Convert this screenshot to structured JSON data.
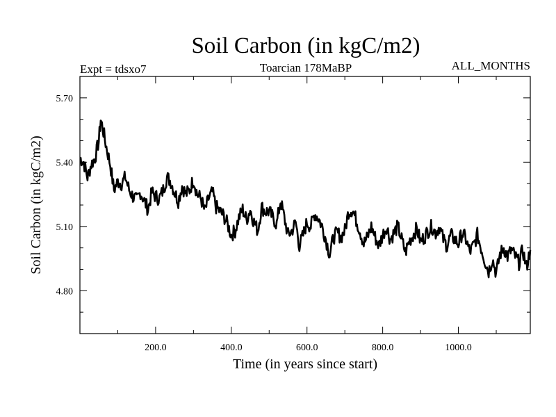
{
  "chart_data": {
    "type": "line",
    "title": "Soil Carbon (in kgC/m2)",
    "subtitle_left": "Expt = tdsxo7",
    "subtitle_center": "Toarcian 178MaBP",
    "subtitle_right": "ALL_MONTHS",
    "xlabel": "Time (in years since start)",
    "ylabel": "Soil Carbon (in kgC/m2)",
    "xlim": [
      0,
      1190
    ],
    "ylim": [
      4.6,
      5.8
    ],
    "xticks": [
      200,
      400,
      600,
      800,
      1000
    ],
    "xtick_labels": [
      "200.0",
      "400.0",
      "600.0",
      "800.0",
      "1000.0"
    ],
    "yticks": [
      4.8,
      5.1,
      5.4,
      5.7
    ],
    "ytick_labels": [
      "4.80",
      "5.10",
      "5.40",
      "5.70"
    ],
    "series": [
      {
        "name": "Soil Carbon",
        "x": [
          0,
          10,
          20,
          30,
          40,
          50,
          55,
          60,
          70,
          80,
          90,
          100,
          110,
          120,
          130,
          140,
          150,
          160,
          170,
          180,
          190,
          200,
          210,
          220,
          230,
          240,
          250,
          260,
          270,
          280,
          290,
          300,
          310,
          320,
          330,
          340,
          350,
          360,
          370,
          380,
          390,
          400,
          410,
          420,
          430,
          440,
          450,
          460,
          470,
          480,
          490,
          500,
          510,
          520,
          530,
          540,
          550,
          560,
          570,
          580,
          590,
          600,
          610,
          620,
          630,
          640,
          650,
          660,
          670,
          680,
          690,
          700,
          710,
          720,
          730,
          740,
          750,
          760,
          770,
          780,
          790,
          800,
          810,
          820,
          830,
          840,
          850,
          860,
          870,
          880,
          890,
          900,
          910,
          920,
          930,
          940,
          950,
          960,
          970,
          980,
          990,
          1000,
          1010,
          1020,
          1030,
          1040,
          1050,
          1060,
          1070,
          1080,
          1090,
          1100,
          1110,
          1120,
          1130,
          1140,
          1150,
          1160,
          1170,
          1180,
          1190
        ],
        "values": [
          5.42,
          5.4,
          5.33,
          5.39,
          5.42,
          5.5,
          5.6,
          5.56,
          5.47,
          5.39,
          5.27,
          5.31,
          5.3,
          5.33,
          5.27,
          5.24,
          5.22,
          5.26,
          5.22,
          5.18,
          5.26,
          5.24,
          5.23,
          5.27,
          5.33,
          5.31,
          5.26,
          5.22,
          5.29,
          5.25,
          5.27,
          5.32,
          5.25,
          5.23,
          5.17,
          5.23,
          5.26,
          5.19,
          5.17,
          5.15,
          5.11,
          5.06,
          5.08,
          5.14,
          5.18,
          5.13,
          5.18,
          5.12,
          5.08,
          5.19,
          5.17,
          5.17,
          5.14,
          5.11,
          5.22,
          5.14,
          5.06,
          5.08,
          5.12,
          5.01,
          5.06,
          5.12,
          5.1,
          5.16,
          5.14,
          5.1,
          5.04,
          4.97,
          5.05,
          5.07,
          5.05,
          5.08,
          5.17,
          5.18,
          5.13,
          5.08,
          5.02,
          5.05,
          5.1,
          5.05,
          5.01,
          5.06,
          5.1,
          5.04,
          5.07,
          5.1,
          5.04,
          4.98,
          5.03,
          5.06,
          5.09,
          5.03,
          5.05,
          5.08,
          5.1,
          5.07,
          5.1,
          5.04,
          5.01,
          5.06,
          5.04,
          5.02,
          5.07,
          5.04,
          4.98,
          5.01,
          5.06,
          5.0,
          4.94,
          4.89,
          4.95,
          4.88,
          4.97,
          5.0,
          4.96,
          4.99,
          4.96,
          4.93,
          4.99,
          4.91,
          4.99
        ]
      }
    ]
  }
}
